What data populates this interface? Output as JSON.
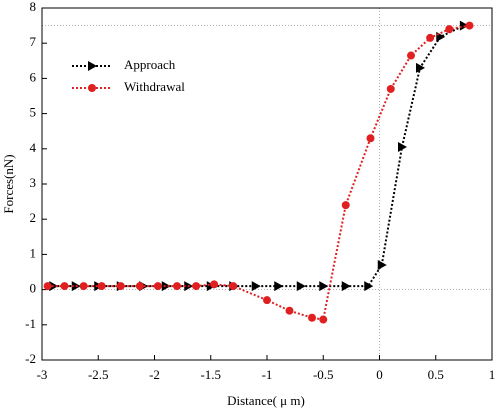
{
  "chart_data": {
    "type": "line",
    "x_label": "Distance( μ m)",
    "y_label": "Forces(nN)",
    "xlim": [
      -3,
      1
    ],
    "xticks": [
      -3,
      -2.5,
      -2,
      -1.5,
      -1,
      -0.5,
      0,
      0.5,
      1
    ],
    "ylim": [
      -2,
      8
    ],
    "yticks": [
      -2,
      -1,
      0,
      1,
      2,
      3,
      4,
      5,
      6,
      7,
      8
    ],
    "reference_lines": {
      "x": [
        0
      ],
      "y": [
        0,
        7.5
      ],
      "color": "#999999"
    },
    "legend": "upper left",
    "series": [
      {
        "name": "Approach",
        "color": "#000000",
        "marker": "triangle-right",
        "x": [
          -2.9,
          -2.7,
          -2.5,
          -2.3,
          -2.1,
          -1.9,
          -1.7,
          -1.5,
          -1.3,
          -1.1,
          -0.9,
          -0.7,
          -0.5,
          -0.3,
          -0.1,
          0.02,
          0.2,
          0.36,
          0.54,
          0.75
        ],
        "values": [
          0.1,
          0.1,
          0.1,
          0.1,
          0.1,
          0.1,
          0.1,
          0.1,
          0.1,
          0.1,
          0.1,
          0.1,
          0.1,
          0.1,
          0.1,
          0.7,
          4.05,
          6.3,
          7.18,
          7.5
        ]
      },
      {
        "name": "Withdrawal",
        "color": "#e02020",
        "marker": "circle",
        "x": [
          -2.95,
          -2.8,
          -2.63,
          -2.47,
          -2.3,
          -2.13,
          -1.97,
          -1.8,
          -1.63,
          -1.47,
          -1.3,
          -1.0,
          -0.8,
          -0.6,
          -0.5,
          -0.3,
          -0.08,
          0.1,
          0.28,
          0.45,
          0.62,
          0.8
        ],
        "values": [
          0.1,
          0.1,
          0.1,
          0.1,
          0.1,
          0.1,
          0.1,
          0.1,
          0.1,
          0.15,
          0.1,
          -0.3,
          -0.6,
          -0.8,
          -0.85,
          2.4,
          4.3,
          5.7,
          6.65,
          7.15,
          7.4,
          7.5
        ]
      }
    ]
  }
}
